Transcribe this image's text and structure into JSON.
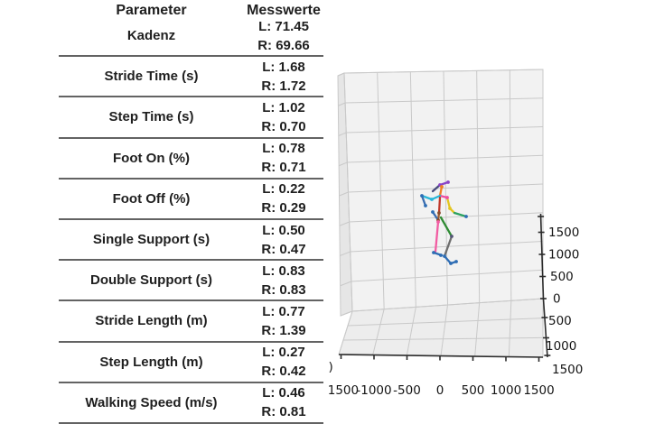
{
  "table": {
    "header": {
      "parameter": "Parameter",
      "values": "Messwerte"
    },
    "rows": [
      {
        "parameter": "Kadenz",
        "left": "L: 71.45",
        "right": "R: 69.66"
      },
      {
        "parameter": "Stride Time (s)",
        "left": "L: 1.68",
        "right": "R: 1.72"
      },
      {
        "parameter": "Step Time (s)",
        "left": "L: 1.02",
        "right": "R: 0.70"
      },
      {
        "parameter": "Foot On (%)",
        "left": "L: 0.78",
        "right": "R: 0.71"
      },
      {
        "parameter": "Foot Off (%)",
        "left": "L: 0.22",
        "right": "R: 0.29"
      },
      {
        "parameter": "Single Support (s)",
        "left": "L: 0.50",
        "right": "R: 0.47"
      },
      {
        "parameter": "Double Support (s)",
        "left": "L: 0.83",
        "right": "R: 0.83"
      },
      {
        "parameter": "Stride Length (m)",
        "left": "L: 0.77",
        "right": "R: 1.39"
      },
      {
        "parameter": "Step Length (m)",
        "left": "L: 0.27",
        "right": "R: 0.42"
      },
      {
        "parameter": "Walking Speed (m/s)",
        "left": "L: 0.46",
        "right": "R: 0.81"
      }
    ]
  },
  "chart_data": {
    "type": "scatter",
    "subtype": "3d-skeleton-mocap",
    "description": "3D motion-capture stick figure of a walking subject inside a gray 3D grid box",
    "title": "",
    "xlabel": "",
    "ylabel": "",
    "zlabel": "",
    "grid": true,
    "x_range": [
      -1500,
      1500
    ],
    "z_range": [
      0,
      2000
    ],
    "depth_range": [
      0,
      1500
    ],
    "x_tick_labels": [
      "-1500",
      "-1000",
      "-500",
      "0",
      "500",
      "1000",
      "1500"
    ],
    "z_tick_labels": [
      "1500",
      "1000",
      "500",
      "0"
    ],
    "depth_tick_labels": [
      "500",
      "1000",
      "1500"
    ],
    "clipped_glyph": ")",
    "colors": {
      "pane_back": "#f2f2f2",
      "pane_side": "#e6e6e6",
      "pane_floor": "#ededed",
      "grid_line": "#c9c9c9",
      "axis_dark": "#2b2b2b"
    },
    "skeleton": {
      "segments": [
        [
          479,
          212,
          487,
          205,
          "#474a7a"
        ],
        [
          487,
          205,
          496,
          202,
          "#8b44c8"
        ],
        [
          489,
          207,
          487,
          217,
          "#f07f23"
        ],
        [
          487,
          217,
          495,
          219,
          "#ef4da0"
        ],
        [
          487,
          217,
          478,
          221,
          "#29b6d8"
        ],
        [
          478,
          221,
          467,
          217,
          "#29b6d8"
        ],
        [
          467,
          217,
          471,
          228,
          "#3a6db0"
        ],
        [
          495,
          219,
          498,
          231,
          "#e3c520"
        ],
        [
          498,
          231,
          503,
          236,
          "#e3c520"
        ],
        [
          503,
          236,
          516,
          240,
          "#2aa160"
        ],
        [
          487,
          219,
          486,
          236,
          "#c0392b"
        ],
        [
          486,
          236,
          485,
          244,
          "#a05a2c"
        ],
        [
          485,
          244,
          479,
          235,
          "#3a6db0"
        ],
        [
          485,
          246,
          482,
          279,
          "#f25ca2"
        ],
        [
          480,
          280,
          489,
          283,
          "#2e6db4"
        ],
        [
          488,
          241,
          500,
          262,
          "#2e8b33"
        ],
        [
          500,
          262,
          492,
          284,
          "#6e6e6e"
        ],
        [
          492,
          284,
          499,
          292,
          "#2e6db4"
        ],
        [
          499,
          292,
          505,
          290,
          "#2e6db4"
        ]
      ],
      "joints": [
        [
          496,
          202,
          "#8b44c8"
        ],
        [
          487,
          205,
          "#8b44c8"
        ],
        [
          489,
          207,
          "#f07f23"
        ],
        [
          495,
          219,
          "#ef4da0"
        ],
        [
          478,
          221,
          "#29b6d8"
        ],
        [
          467,
          217,
          "#2e6db4"
        ],
        [
          471,
          228,
          "#2e6db4"
        ],
        [
          498,
          231,
          "#e3c520"
        ],
        [
          516,
          240,
          "#2e6db4"
        ],
        [
          486,
          236,
          "#8a4a2a"
        ],
        [
          485,
          244,
          "#8a4a2a"
        ],
        [
          479,
          235,
          "#2e6db4"
        ],
        [
          485,
          246,
          "#f25ca2"
        ],
        [
          480,
          280,
          "#2e6db4"
        ],
        [
          488,
          283,
          "#2e6db4"
        ],
        [
          500,
          262,
          "#555577"
        ],
        [
          492,
          284,
          "#2e6db4"
        ],
        [
          499,
          292,
          "#2e6db4"
        ],
        [
          505,
          290,
          "#2e6db4"
        ]
      ]
    }
  }
}
